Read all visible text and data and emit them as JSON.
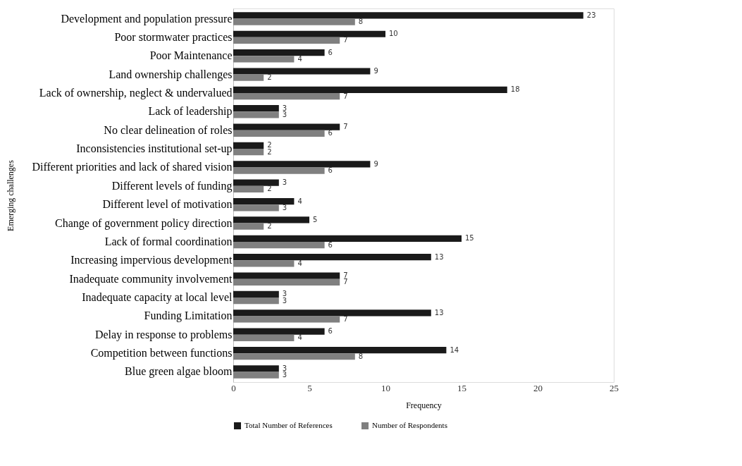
{
  "chart_data": {
    "type": "bar",
    "orientation": "horizontal",
    "xlabel": "Frequency",
    "ylabel": "Emerging challenges",
    "categories": [
      "Development and population pressure",
      "Poor stormwater practices",
      "Poor Maintenance",
      "Land ownership challenges",
      "Lack of ownership, neglect & undervalued",
      "Lack of leadership",
      "No clear delineation of roles",
      "Inconsistencies institutional set-up",
      "Different priorities and lack of shared vision",
      "Different levels of funding",
      "Different level of motivation",
      "Change of government policy direction",
      "Lack of formal coordination",
      "Increasing impervious development",
      "Inadequate community involvement",
      "Inadequate capacity at local level",
      "Funding Limitation",
      "Delay in response to problems",
      "Competition between functions",
      "Blue green algae bloom"
    ],
    "series": [
      {
        "name": "Total Number of References",
        "color": "#1a1a1a",
        "values": [
          23,
          10,
          6,
          9,
          18,
          3,
          7,
          2,
          9,
          3,
          4,
          5,
          15,
          13,
          7,
          3,
          13,
          6,
          14,
          3
        ]
      },
      {
        "name": "Number of Respondents",
        "color": "#808080",
        "values": [
          8,
          7,
          4,
          2,
          7,
          3,
          6,
          2,
          6,
          2,
          3,
          2,
          6,
          4,
          7,
          3,
          7,
          4,
          8,
          3
        ]
      }
    ],
    "xlim": [
      0,
      25
    ],
    "xticks": [
      0,
      5,
      10,
      15,
      20,
      25
    ],
    "data_labels": true,
    "grid": false,
    "legend": "bottom"
  }
}
